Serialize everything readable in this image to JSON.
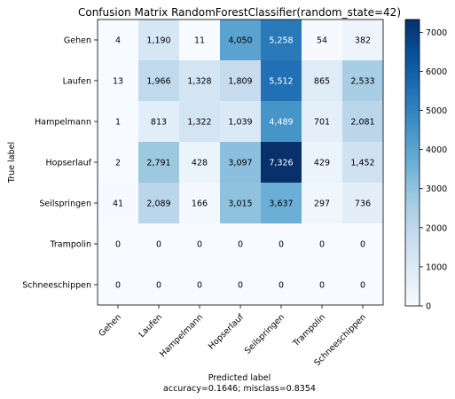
{
  "chart_data": {
    "type": "heatmap",
    "title": "Confusion Matrix RandomForestClassifier(random_state=42)",
    "ylabel": "True label",
    "xlabel": "Predicted label",
    "xlabel_sub": "accuracy=0.1646; misclass=0.8354",
    "x_categories": [
      "Gehen",
      "Laufen",
      "Hampelmann",
      "Hopserlauf",
      "Seilspringen",
      "Trampolin",
      "Schneeschippen"
    ],
    "y_categories": [
      "Gehen",
      "Laufen",
      "Hampelmann",
      "Hopserlauf",
      "Seilspringen",
      "Trampolin",
      "Schneeschippen"
    ],
    "values": [
      [
        4,
        1190,
        11,
        4050,
        5258,
        54,
        382
      ],
      [
        13,
        1966,
        1328,
        1809,
        5512,
        865,
        2533
      ],
      [
        1,
        813,
        1322,
        1039,
        4489,
        701,
        2081
      ],
      [
        2,
        2791,
        428,
        3097,
        7326,
        429,
        1452
      ],
      [
        41,
        2089,
        166,
        3015,
        3637,
        297,
        736
      ],
      [
        0,
        0,
        0,
        0,
        0,
        0,
        0
      ],
      [
        0,
        0,
        0,
        0,
        0,
        0,
        0
      ]
    ],
    "value_labels": [
      [
        "4",
        "1,190",
        "11",
        "4,050",
        "5,258",
        "54",
        "382"
      ],
      [
        "13",
        "1,966",
        "1,328",
        "1,809",
        "5,512",
        "865",
        "2,533"
      ],
      [
        "1",
        "813",
        "1,322",
        "1,039",
        "4,489",
        "701",
        "2,081"
      ],
      [
        "2",
        "2,791",
        "428",
        "3,097",
        "7,326",
        "429",
        "1,452"
      ],
      [
        "41",
        "2,089",
        "166",
        "3,015",
        "3,637",
        "297",
        "736"
      ],
      [
        "0",
        "0",
        "0",
        "0",
        "0",
        "0",
        "0"
      ],
      [
        "0",
        "0",
        "0",
        "0",
        "0",
        "0",
        "0"
      ]
    ],
    "colormap": "Blues",
    "vmin": 0,
    "vmax": 7326,
    "colorbar_ticks": [
      0,
      1000,
      2000,
      3000,
      4000,
      5000,
      6000,
      7000
    ],
    "grid": false
  }
}
